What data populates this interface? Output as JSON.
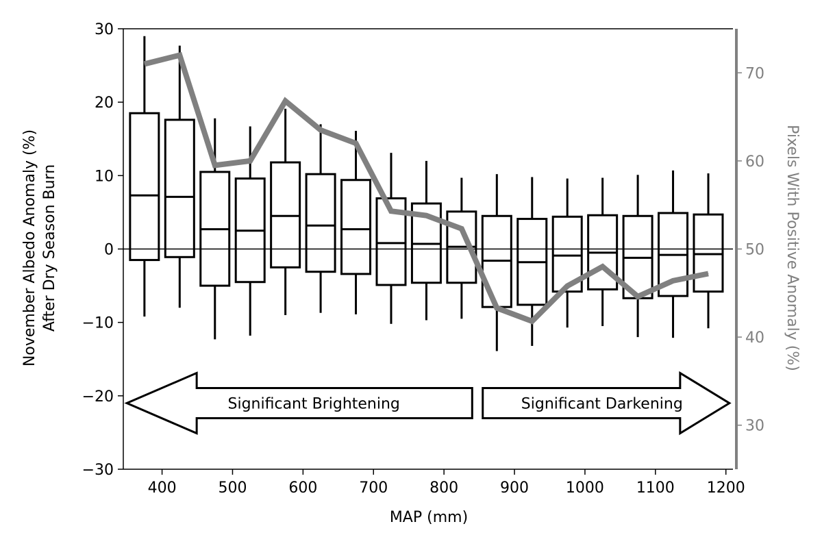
{
  "chart_data": {
    "type": "box",
    "xlabel": "MAP (mm)",
    "ylabel_lines": [
      "November Albedo Anomaly (%)",
      "After Dry Season Burn"
    ],
    "ylabel_right": "Pixels With Positive Anomaly (%)",
    "xlim": [
      345,
      1210
    ],
    "ylim": [
      -30,
      30
    ],
    "ylim_right": [
      25,
      75
    ],
    "x_ticks": [
      400,
      500,
      600,
      700,
      800,
      900,
      1000,
      1100,
      1200
    ],
    "y_ticks": [
      -30,
      -20,
      -10,
      0,
      10,
      20,
      30
    ],
    "y_ticks_right": [
      30,
      40,
      50,
      60,
      70
    ],
    "tick_label_format": {
      "minus": "−"
    },
    "zero_line": 0,
    "colors": {
      "boxes": "#000000",
      "line": "#808080",
      "right_axis": "#808080"
    },
    "boxes": [
      {
        "x": 375,
        "whisker_low": -9.2,
        "q1": -1.5,
        "median": 7.3,
        "q3": 18.5,
        "whisker_high": 29.0
      },
      {
        "x": 425,
        "whisker_low": -8.0,
        "q1": -1.1,
        "median": 7.1,
        "q3": 17.6,
        "whisker_high": 27.7
      },
      {
        "x": 475,
        "whisker_low": -12.3,
        "q1": -5.0,
        "median": 2.7,
        "q3": 10.5,
        "whisker_high": 17.8
      },
      {
        "x": 525,
        "whisker_low": -11.8,
        "q1": -4.5,
        "median": 2.5,
        "q3": 9.6,
        "whisker_high": 16.7
      },
      {
        "x": 575,
        "whisker_low": -9.0,
        "q1": -2.5,
        "median": 4.5,
        "q3": 11.8,
        "whisker_high": 19.1
      },
      {
        "x": 625,
        "whisker_low": -8.7,
        "q1": -3.1,
        "median": 3.2,
        "q3": 10.2,
        "whisker_high": 17.0
      },
      {
        "x": 675,
        "whisker_low": -8.9,
        "q1": -3.4,
        "median": 2.7,
        "q3": 9.4,
        "whisker_high": 16.1
      },
      {
        "x": 725,
        "whisker_low": -10.2,
        "q1": -4.9,
        "median": 0.8,
        "q3": 6.9,
        "whisker_high": 13.1
      },
      {
        "x": 775,
        "whisker_low": -9.7,
        "q1": -4.6,
        "median": 0.7,
        "q3": 6.2,
        "whisker_high": 12.0
      },
      {
        "x": 825,
        "whisker_low": -9.5,
        "q1": -4.6,
        "median": 0.3,
        "q3": 5.1,
        "whisker_high": 9.7
      },
      {
        "x": 875,
        "whisker_low": -13.9,
        "q1": -7.9,
        "median": -1.6,
        "q3": 4.5,
        "whisker_high": 10.2
      },
      {
        "x": 925,
        "whisker_low": -13.2,
        "q1": -7.6,
        "median": -1.8,
        "q3": 4.1,
        "whisker_high": 9.8
      },
      {
        "x": 975,
        "whisker_low": -10.7,
        "q1": -5.8,
        "median": -0.9,
        "q3": 4.4,
        "whisker_high": 9.6
      },
      {
        "x": 1025,
        "whisker_low": -10.5,
        "q1": -5.5,
        "median": -0.5,
        "q3": 4.6,
        "whisker_high": 9.7
      },
      {
        "x": 1075,
        "whisker_low": -12.0,
        "q1": -6.7,
        "median": -1.2,
        "q3": 4.5,
        "whisker_high": 10.1
      },
      {
        "x": 1125,
        "whisker_low": -12.1,
        "q1": -6.4,
        "median": -0.8,
        "q3": 4.9,
        "whisker_high": 10.7
      },
      {
        "x": 1175,
        "whisker_low": -10.8,
        "q1": -5.8,
        "median": -0.7,
        "q3": 4.7,
        "whisker_high": 10.3
      }
    ],
    "line_series": {
      "axis": "right",
      "x": [
        375,
        425,
        475,
        525,
        575,
        625,
        675,
        725,
        775,
        825,
        875,
        925,
        975,
        1025,
        1075,
        1125,
        1175
      ],
      "values": [
        71.0,
        72.0,
        59.5,
        60.0,
        66.8,
        63.5,
        62.0,
        54.3,
        53.8,
        52.3,
        43.3,
        41.8,
        45.8,
        48.0,
        44.6,
        46.4,
        47.2
      ]
    },
    "annotations": [
      {
        "text": "Significant Brightening",
        "direction": "left",
        "x_from": 350,
        "x_to": 840,
        "y": -21.0
      },
      {
        "text": "Significant Darkening",
        "direction": "right",
        "x_from": 855,
        "x_to": 1205,
        "y": -21.0
      }
    ]
  }
}
